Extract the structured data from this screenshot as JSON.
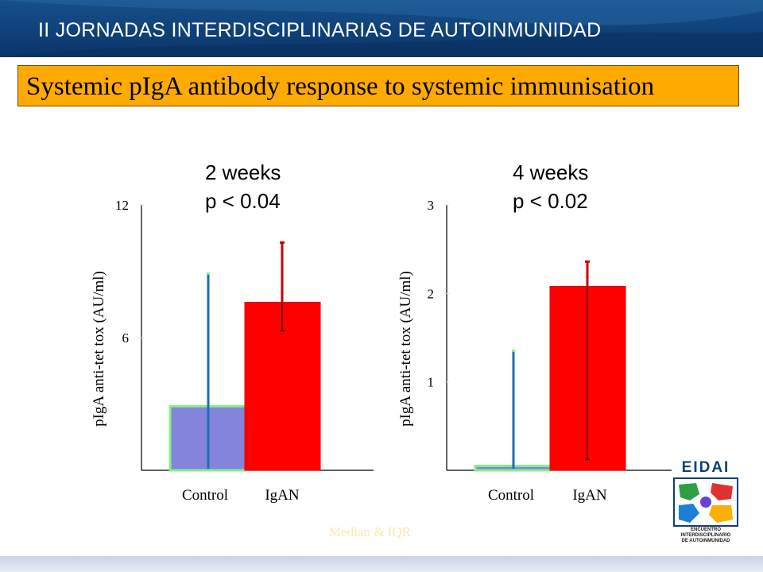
{
  "header": {
    "title": "II JORNADAS INTERDISCIPLINARIAS DE AUTOINMUNIDAD"
  },
  "slide_title": "Systemic pIgA antibody response to systemic  immunisation",
  "footnote": "Median & IQR",
  "logo": {
    "name": "EIDAI",
    "line1": "ENCUENTRO",
    "line2": "INTERDISCIPLINARIO",
    "line3": "DE AUTOINMUNIDAD"
  },
  "colors": {
    "control_fill": "#8584dc",
    "control_border": "#88ee88",
    "control_whisker": "#1a6fb5",
    "iga_fill": "#ff0000",
    "iga_whisker": "#cc0000",
    "title_bg": "#ffaa00",
    "header_bg": "#0f4179"
  },
  "chart_data": [
    {
      "type": "bar",
      "annotation": [
        "2 weeks",
        "p < 0.04"
      ],
      "categories": [
        "Control",
        "IgAN"
      ],
      "ylabel": "pIgA anti-tet tox (AU/ml)",
      "yticks": [
        "6",
        "12"
      ],
      "ytick_values": [
        6,
        12
      ],
      "ylim": [
        0,
        12
      ],
      "values": [
        2.9,
        7.6
      ],
      "error_low": [
        0.0,
        6.3
      ],
      "error_high": [
        8.9,
        10.3
      ],
      "grid": false,
      "legend": "none"
    },
    {
      "type": "bar",
      "annotation": [
        "4 weeks",
        "p < 0.02"
      ],
      "categories": [
        "Control",
        "IgAN"
      ],
      "ylabel": "pIgA anti-tet tox (AU/ml)",
      "yticks": [
        "1",
        "2",
        "3"
      ],
      "ytick_values": [
        1,
        2,
        3
      ],
      "ylim": [
        0,
        3
      ],
      "values": [
        0.05,
        2.08
      ],
      "error_low": [
        0.0,
        0.12
      ],
      "error_high": [
        1.35,
        2.36
      ],
      "grid": false,
      "legend": "none"
    }
  ]
}
